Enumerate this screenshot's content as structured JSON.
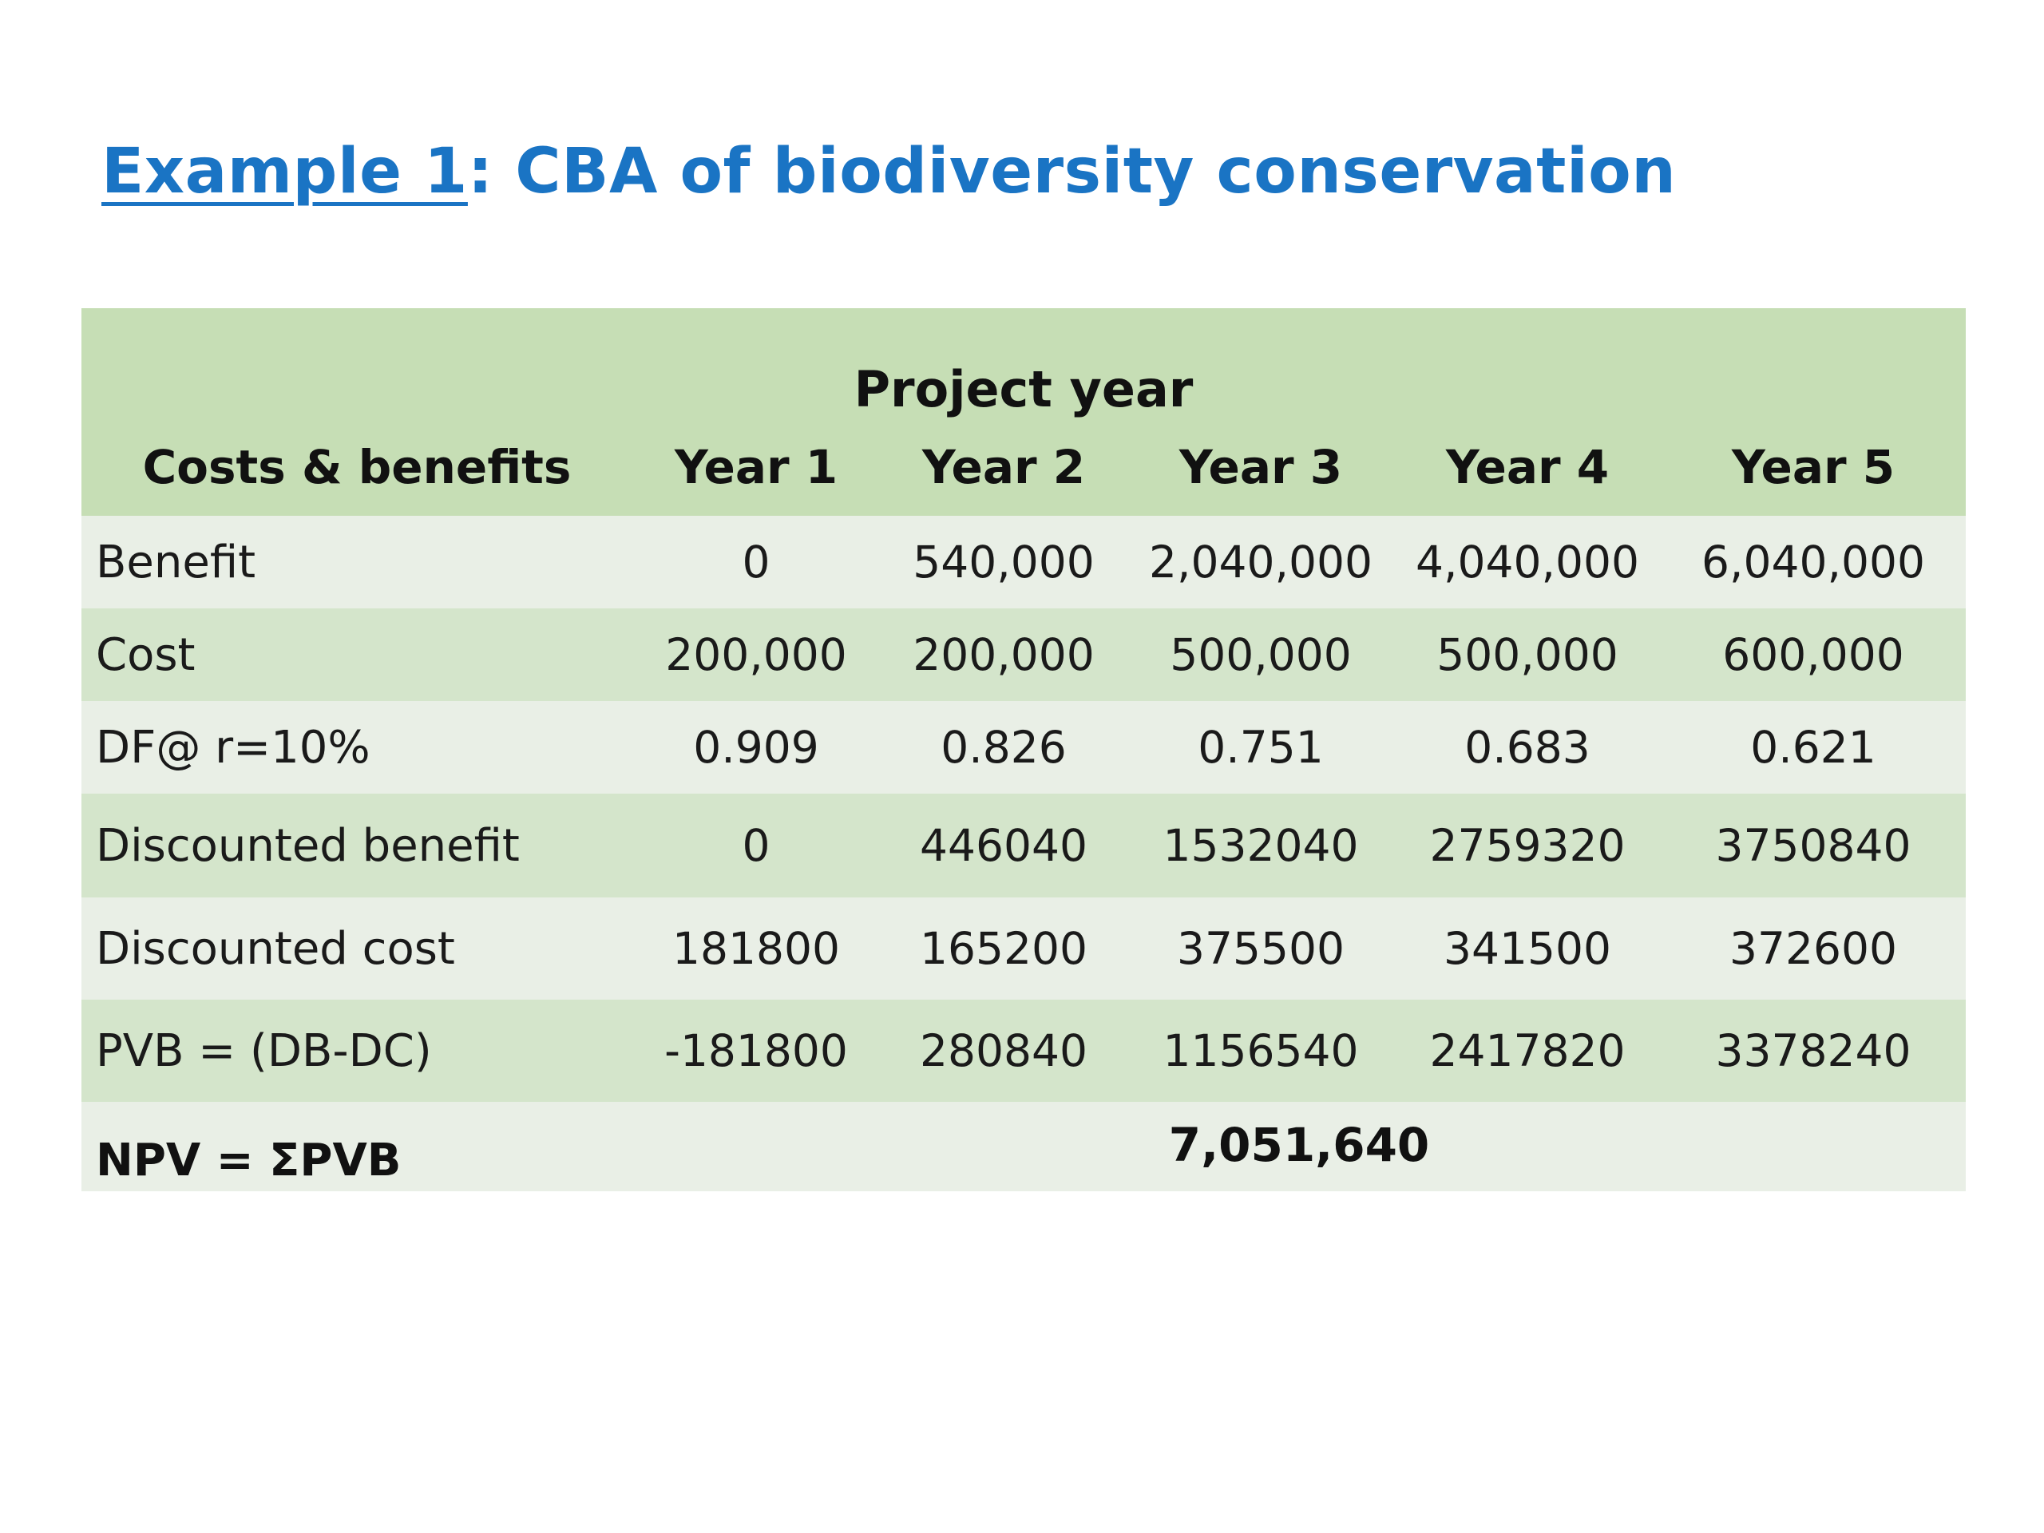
{
  "title": {
    "link_text": "Example 1",
    "rest_text": ": CBA of biodiversity conservation"
  },
  "table": {
    "span_header": "Project year",
    "columns": [
      "Costs & benefits",
      "Year 1",
      "Year 2",
      "Year 3",
      "Year 4",
      "Year 5"
    ],
    "rows": [
      {
        "label": "Benefit",
        "values": [
          "0",
          "540,000",
          "2,040,000",
          "4,040,000",
          "6,040,000"
        ]
      },
      {
        "label": "Cost",
        "values": [
          "200,000",
          "200,000",
          "500,000",
          "500,000",
          "600,000"
        ]
      },
      {
        "label": "DF@ r=10%",
        "values": [
          "0.909",
          "0.826",
          "0.751",
          "0.683",
          "0.621"
        ]
      },
      {
        "label": "Discounted benefit",
        "values": [
          "0",
          "446040",
          "1532040",
          "2759320",
          "3750840"
        ]
      },
      {
        "label": "Discounted cost",
        "values": [
          "181800",
          "165200",
          "375500",
          "341500",
          "372600"
        ]
      },
      {
        "label": "PVB = (DB-DC)",
        "values": [
          "-181800",
          "280840",
          "1156540",
          "2417820",
          "3378240"
        ]
      }
    ],
    "npv": {
      "label": "NPV = ΣPVB",
      "value": "7,051,640"
    }
  },
  "colors": {
    "title": "#1a74c4",
    "header_bg": "#c6deb5",
    "row_dark": "#d4e5cb",
    "row_light": "#e9efe6"
  }
}
